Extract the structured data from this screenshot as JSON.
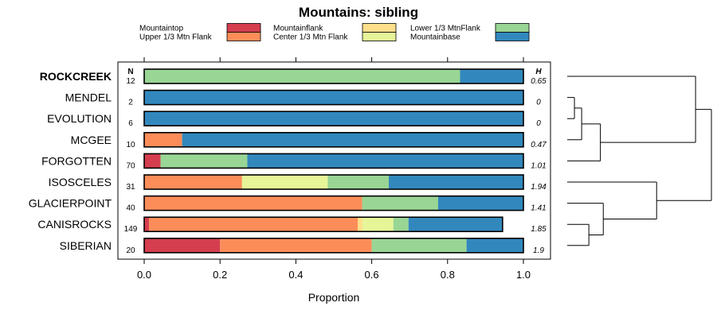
{
  "chart_data": {
    "type": "bar",
    "orientation": "horizontal",
    "stacked": true,
    "title": "Mountains: sibling",
    "xlabel": "Proportion",
    "ylabel": "",
    "xlim": [
      0,
      1
    ],
    "xticks": [
      "0.0",
      "0.2",
      "0.4",
      "0.6",
      "0.8",
      "1.0"
    ],
    "n_header": "N",
    "h_header": "H",
    "legend": [
      {
        "name": "Mountaintop",
        "color": "#d53e4f"
      },
      {
        "name": "Upper 1/3 Mtn Flank",
        "color": "#fc8d59"
      },
      {
        "name": "Mountainflank",
        "color": "#fee08b"
      },
      {
        "name": "Center 1/3 Mtn Flank",
        "color": "#e6f598"
      },
      {
        "name": "Lower 1/3 MtnFlank",
        "color": "#99d594"
      },
      {
        "name": "Mountainbase",
        "color": "#3288bd"
      }
    ],
    "categories": [
      "ROCKCREEK",
      "MENDEL",
      "EVOLUTION",
      "MCGEE",
      "FORGOTTEN",
      "ISOSCELES",
      "GLACIERPOINT",
      "CANISROCKS",
      "SIBERIAN"
    ],
    "highlight": "ROCKCREEK",
    "n_values": [
      "12",
      "2",
      "6",
      "10",
      "70",
      "31",
      "40",
      "149",
      "20"
    ],
    "h_values": [
      "0.65",
      "0",
      "0",
      "0.47",
      "1.01",
      "1.94",
      "1.41",
      "1.85",
      "1.9"
    ],
    "series": [
      {
        "name": "Mountaintop",
        "values": [
          0,
          0,
          0,
          0,
          0.043,
          0,
          0,
          0.013,
          0.2
        ]
      },
      {
        "name": "Upper 1/3 Mtn Flank",
        "values": [
          0,
          0,
          0,
          0.1,
          0,
          0.258,
          0.575,
          0.55,
          0.4
        ]
      },
      {
        "name": "Mountainflank",
        "values": [
          0,
          0,
          0,
          0,
          0,
          0,
          0,
          0.013,
          0
        ]
      },
      {
        "name": "Center 1/3 Mtn Flank",
        "values": [
          0,
          0,
          0,
          0,
          0,
          0.226,
          0,
          0.081,
          0
        ]
      },
      {
        "name": "Lower 1/3 MtnFlank",
        "values": [
          0.833,
          0,
          0,
          0,
          0.229,
          0.161,
          0.2,
          0.04,
          0.25
        ]
      },
      {
        "name": "Mountainbase",
        "values": [
          0.167,
          1,
          1,
          0.9,
          0.728,
          0.355,
          0.225,
          0.248,
          0.15
        ]
      }
    ],
    "dendrogram": {
      "leaves": [
        "ROCKCREEK",
        "MENDEL",
        "EVOLUTION",
        "MCGEE",
        "FORGOTTEN",
        "ISOSCELES",
        "GLACIERPOINT",
        "CANISROCKS",
        "SIBERIAN"
      ],
      "merges": [
        {
          "a": "MENDEL",
          "b": "EVOLUTION",
          "height": 0.05
        },
        {
          "a": "c0",
          "b": "MCGEE",
          "height": 0.1
        },
        {
          "a": "c1",
          "b": "FORGOTTEN",
          "height": 0.23
        },
        {
          "a": "CANISROCKS",
          "b": "SIBERIAN",
          "height": 0.15
        },
        {
          "a": "GLACIERPOINT",
          "b": "c3",
          "height": 0.25
        },
        {
          "a": "ISOSCELES",
          "b": "c4",
          "height": 0.62
        },
        {
          "a": "ROCKCREEK",
          "b": "c2",
          "height": 0.89
        },
        {
          "a": "c6",
          "b": "c5",
          "height": 1.0
        }
      ]
    }
  }
}
